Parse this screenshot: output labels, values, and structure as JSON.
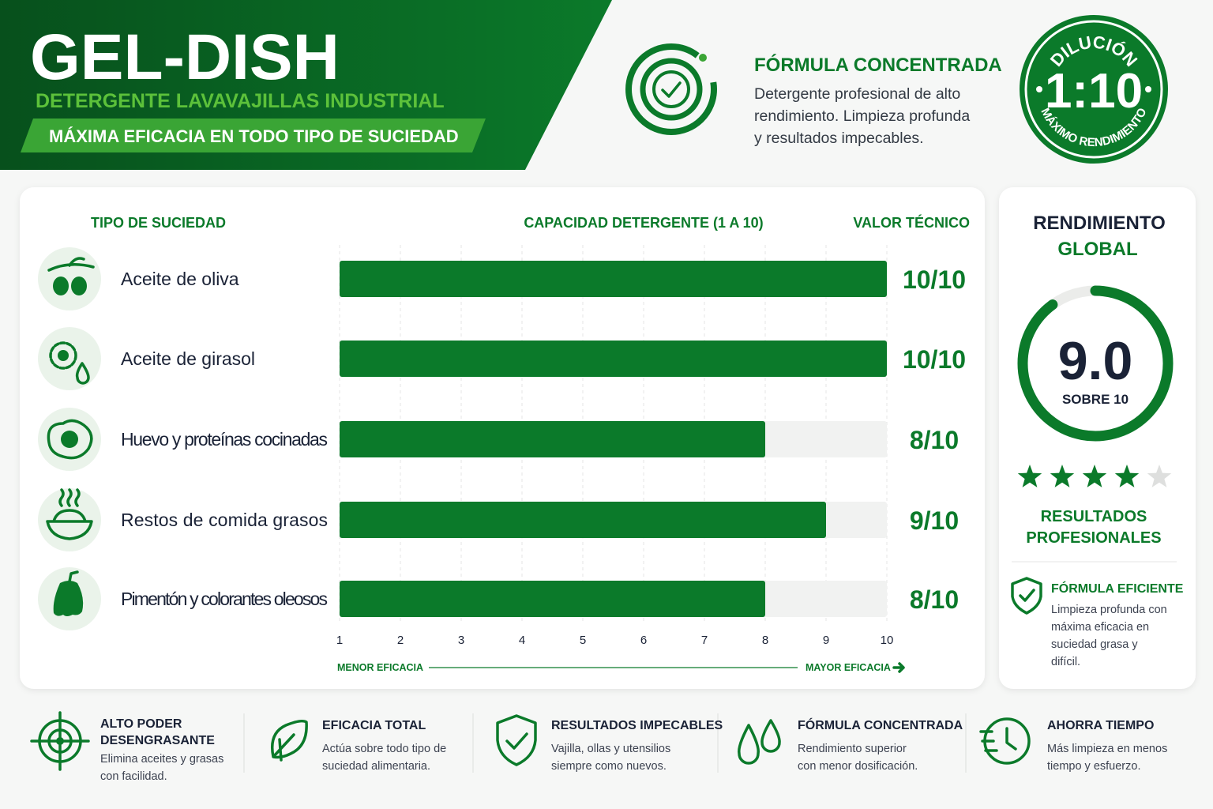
{
  "header": {
    "title": "GEL-DISH",
    "subtitle": "DETERGENTE LAVAVAJILLAS INDUSTRIAL",
    "tagline": "MÁXIMA EFICACIA EN TODO TIPO DE SUCIEDAD"
  },
  "formula": {
    "title": "FÓRMULA CONCENTRADA",
    "lines": [
      "Detergente profesional de alto",
      "rendimiento. Limpieza profunda",
      "y resultados impecables."
    ]
  },
  "badge": {
    "top": "DILUCIÓN",
    "ratio": "1:10",
    "bottom": "MÁXIMO RENDIMIENTO"
  },
  "chart_data": [
    {
      "type": "bar",
      "orientation": "horizontal",
      "title": "CAPACIDAD DETERGENTE (1 A 10)",
      "category_header": "TIPO DE SUCIEDAD",
      "value_header": "VALOR TÉCNICO",
      "categories": [
        "Aceite de oliva",
        "Aceite de girasol",
        "Huevo y proteínas cocinadas",
        "Restos de comida grasos",
        "Pimentón y colorantes oleosos"
      ],
      "values": [
        10,
        10,
        8,
        9,
        8
      ],
      "value_labels": [
        "10/10",
        "10/10",
        "8/10",
        "9/10",
        "8/10"
      ],
      "color": "#0b7a2a",
      "xlim": [
        1,
        10
      ],
      "xticks": [
        1,
        2,
        3,
        4,
        5,
        6,
        7,
        8,
        9,
        10
      ],
      "grid": true,
      "annotations": [
        "MENOR EFICACIA",
        "MAYOR EFICACIA"
      ]
    },
    {
      "type": "gauge",
      "title": [
        "RENDIMIENTO",
        "GLOBAL"
      ],
      "value": 9,
      "value_label": "9.0",
      "subtitle": "SOBRE 10",
      "range": [
        0,
        10
      ],
      "color": "#0b7a2a",
      "rating": 4,
      "rating_max": 5
    }
  ],
  "side": {
    "results": [
      "RESULTADOS",
      "PROFESIONALES"
    ],
    "note_title": "FÓRMULA EFICIENTE",
    "note_lines": [
      "Limpieza profunda con",
      "máxima eficacia en",
      "suciedad grasa y",
      "difícil."
    ]
  },
  "features": [
    {
      "title": [
        "ALTO PODER",
        "DESENGRASANTE"
      ],
      "lines": [
        "Elimina aceites y grasas",
        "con facilidad."
      ]
    },
    {
      "title": [
        "EFICACIA TOTAL"
      ],
      "lines": [
        "Actúa sobre todo tipo de",
        "suciedad alimentaria."
      ]
    },
    {
      "title": [
        "RESULTADOS IMPECABLES"
      ],
      "lines": [
        "Vajilla, ollas y utensilios",
        "siempre como nuevos."
      ]
    },
    {
      "title": [
        "FÓRMULA CONCENTRADA"
      ],
      "lines": [
        "Rendimiento superior",
        "con menor dosificación."
      ]
    },
    {
      "title": [
        "AHORRA TIEMPO"
      ],
      "lines": [
        "Más limpieza en menos",
        "tiempo y esfuerzo."
      ]
    }
  ]
}
